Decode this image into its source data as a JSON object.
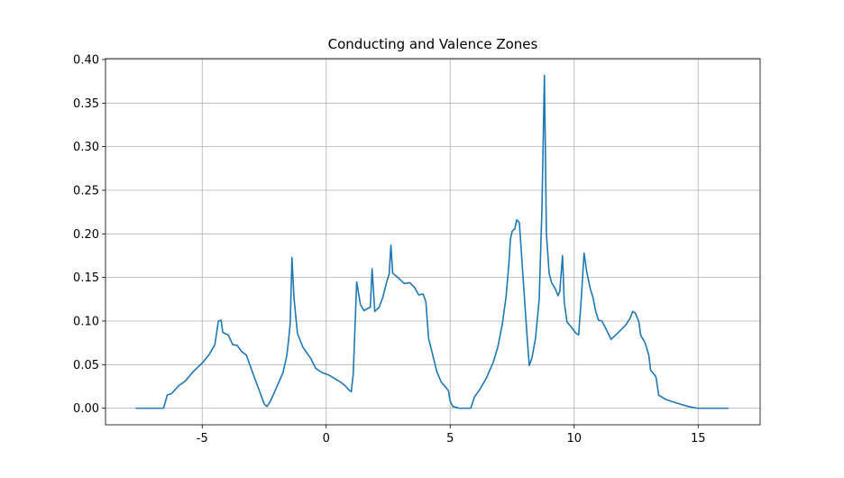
{
  "chart_data": {
    "type": "line",
    "title": "Conducting and Valence Zones",
    "x": [
      -7.68,
      -6.56,
      -6.41,
      -6.23,
      -5.94,
      -5.69,
      -5.36,
      -4.96,
      -4.71,
      -4.49,
      -4.42,
      -4.35,
      -4.24,
      -4.17,
      -3.95,
      -3.77,
      -3.59,
      -3.41,
      -3.22,
      -2.97,
      -2.72,
      -2.5,
      -2.39,
      -2.25,
      -2.0,
      -1.74,
      -1.59,
      -1.52,
      -1.45,
      -1.38,
      -1.3,
      -1.16,
      -0.94,
      -0.62,
      -0.43,
      -0.18,
      0.11,
      0.58,
      0.76,
      0.91,
      1.01,
      1.09,
      1.23,
      1.38,
      1.52,
      1.78,
      1.85,
      1.96,
      2.14,
      2.28,
      2.43,
      2.54,
      2.61,
      2.68,
      2.93,
      3.15,
      3.37,
      3.55,
      3.73,
      3.91,
      4.02,
      4.13,
      4.28,
      4.46,
      4.64,
      4.82,
      4.93,
      5.0,
      5.11,
      5.36,
      5.83,
      5.98,
      6.16,
      6.45,
      6.74,
      6.92,
      7.1,
      7.25,
      7.36,
      7.43,
      7.5,
      7.61,
      7.68,
      7.79,
      7.97,
      8.12,
      8.19,
      8.3,
      8.44,
      8.59,
      8.7,
      8.8,
      8.88,
      8.99,
      9.09,
      9.24,
      9.35,
      9.42,
      9.53,
      9.6,
      9.71,
      9.89,
      10.07,
      10.18,
      10.29,
      10.4,
      10.51,
      10.65,
      10.76,
      10.87,
      10.98,
      11.12,
      11.3,
      11.49,
      11.78,
      12.07,
      12.25,
      12.36,
      12.47,
      12.61,
      12.68,
      12.86,
      13.01,
      13.08,
      13.19,
      13.3,
      13.41,
      13.7,
      14.13,
      14.6,
      14.96,
      16.23
    ],
    "series": [
      {
        "color": "#1f77b4",
        "values": [
          0,
          0,
          0.015,
          0.017,
          0.026,
          0.031,
          0.042,
          0.053,
          0.062,
          0.073,
          0.086,
          0.1,
          0.101,
          0.087,
          0.084,
          0.073,
          0.072,
          0.065,
          0.061,
          0.041,
          0.022,
          0.005,
          0.002,
          0.008,
          0.024,
          0.041,
          0.06,
          0.077,
          0.098,
          0.173,
          0.127,
          0.086,
          0.07,
          0.057,
          0.046,
          0.041,
          0.038,
          0.03,
          0.026,
          0.021,
          0.019,
          0.039,
          0.145,
          0.119,
          0.112,
          0.116,
          0.16,
          0.111,
          0.116,
          0.127,
          0.144,
          0.154,
          0.187,
          0.155,
          0.149,
          0.143,
          0.144,
          0.139,
          0.13,
          0.131,
          0.122,
          0.08,
          0.063,
          0.042,
          0.03,
          0.024,
          0.02,
          0.008,
          0.002,
          0,
          0,
          0.013,
          0.02,
          0.034,
          0.053,
          0.07,
          0.096,
          0.127,
          0.163,
          0.194,
          0.203,
          0.206,
          0.216,
          0.213,
          0.137,
          0.075,
          0.049,
          0.058,
          0.08,
          0.125,
          0.228,
          0.382,
          0.201,
          0.155,
          0.144,
          0.137,
          0.129,
          0.134,
          0.175,
          0.122,
          0.099,
          0.093,
          0.086,
          0.084,
          0.127,
          0.178,
          0.156,
          0.137,
          0.127,
          0.111,
          0.101,
          0.1,
          0.09,
          0.079,
          0.087,
          0.095,
          0.103,
          0.111,
          0.109,
          0.099,
          0.084,
          0.075,
          0.061,
          0.044,
          0.04,
          0.036,
          0.015,
          0.01,
          0.006,
          0.002,
          0,
          0
        ]
      }
    ],
    "xlim": [
      -8.9,
      17.5
    ],
    "xticks": [
      -5,
      0,
      5,
      10,
      15
    ],
    "ylim": [
      -0.019,
      0.401
    ],
    "yticks": [
      {
        "value": 0,
        "label": "0.00"
      },
      {
        "value": 0.05,
        "label": "0.05"
      },
      {
        "value": 0.1,
        "label": "0.10"
      },
      {
        "value": 0.15,
        "label": "0.15"
      },
      {
        "value": 0.2,
        "label": "0.20"
      },
      {
        "value": 0.25,
        "label": "0.25"
      },
      {
        "value": 0.3,
        "label": "0.30"
      },
      {
        "value": 0.35,
        "label": "0.35"
      },
      {
        "value": 0.4,
        "label": "0.40"
      }
    ],
    "grid": true
  }
}
